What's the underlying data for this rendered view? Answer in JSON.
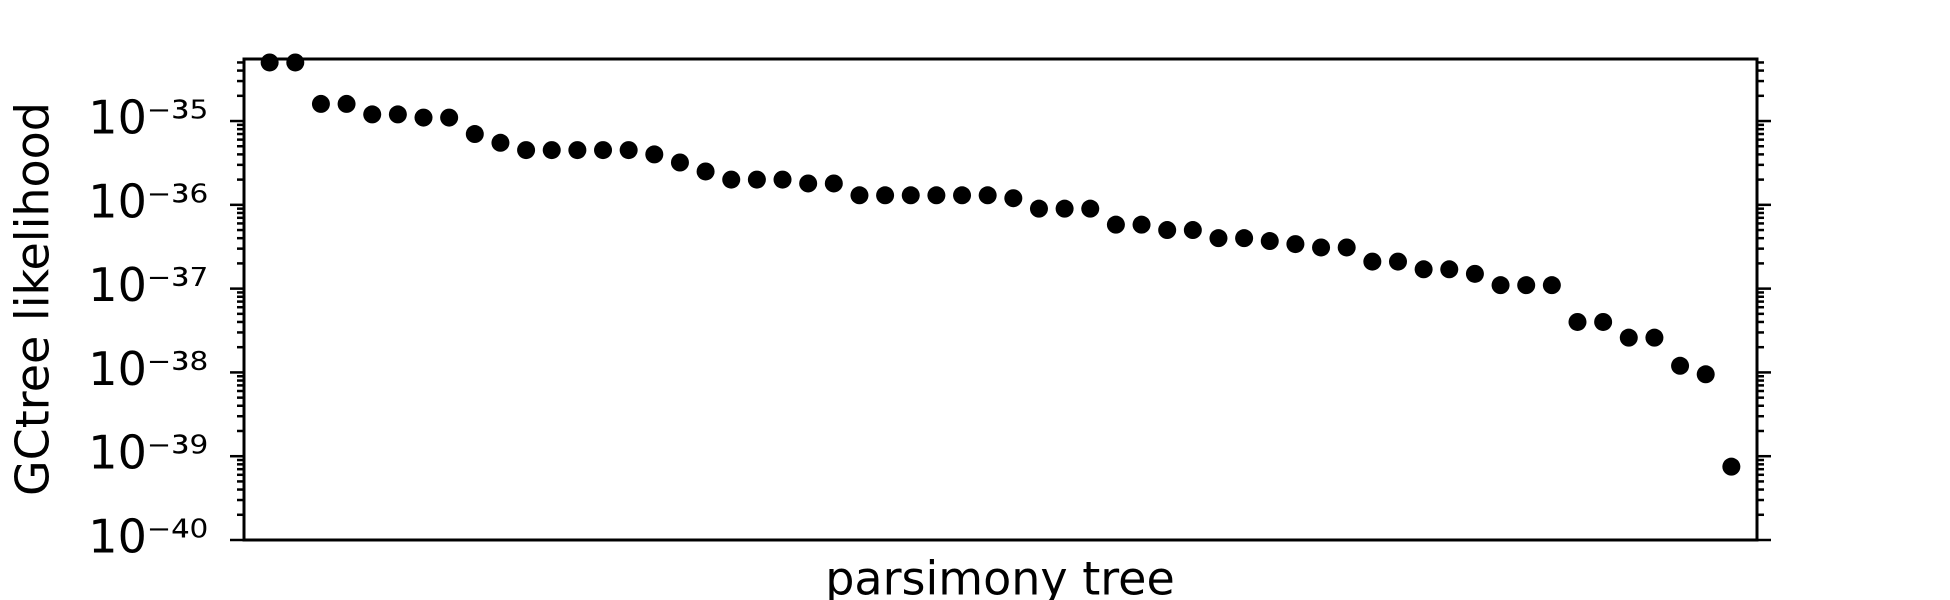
{
  "chart_data": {
    "type": "scatter",
    "x_label": "parsimony tree",
    "y_label": "GCtree likelihood",
    "x": [
      1,
      2,
      3,
      4,
      5,
      6,
      7,
      8,
      9,
      10,
      11,
      12,
      13,
      14,
      15,
      16,
      17,
      18,
      19,
      20,
      21,
      22,
      23,
      24,
      25,
      26,
      27,
      28,
      29,
      30,
      31,
      32,
      33,
      34,
      35,
      36,
      37,
      38,
      39,
      40,
      41,
      42,
      43,
      44,
      45,
      46,
      47,
      48,
      49,
      50,
      51,
      52,
      53,
      54,
      55,
      56,
      57,
      58
    ],
    "values": [
      5e-35,
      5e-35,
      1.6e-35,
      1.6e-35,
      1.2e-35,
      1.2e-35,
      1.1e-35,
      1.1e-35,
      7e-36,
      5.5e-36,
      4.5e-36,
      4.5e-36,
      4.5e-36,
      4.5e-36,
      4.5e-36,
      4e-36,
      3.2e-36,
      2.5e-36,
      2e-36,
      2e-36,
      2e-36,
      1.8e-36,
      1.8e-36,
      1.3e-36,
      1.3e-36,
      1.3e-36,
      1.3e-36,
      1.3e-36,
      1.3e-36,
      1.2e-36,
      9e-37,
      9e-37,
      9e-37,
      5.8e-37,
      5.8e-37,
      5e-37,
      5e-37,
      4e-37,
      4e-37,
      3.7e-37,
      3.4e-37,
      3.1e-37,
      3.1e-37,
      2.1e-37,
      2.1e-37,
      1.7e-37,
      1.7e-37,
      1.5e-37,
      1.1e-37,
      1.1e-37,
      1.1e-37,
      4e-38,
      4e-38,
      2.6e-38,
      2.6e-38,
      1.2e-38,
      9.5e-39,
      7.5e-40
    ],
    "color": "#000000",
    "xlim": [
      0,
      59
    ],
    "ylim": [
      1e-40,
      5.5e-35
    ],
    "y_log": true,
    "yticks": [
      {
        "value": 1e-40,
        "label": "10⁻⁴⁰"
      },
      {
        "value": 1e-39,
        "label": "10⁻³⁹"
      },
      {
        "value": 1e-38,
        "label": "10⁻³⁸"
      },
      {
        "value": 1e-37,
        "label": "10⁻³⁷"
      },
      {
        "value": 1e-36,
        "label": "10⁻³⁶"
      },
      {
        "value": 1e-35,
        "label": "10⁻³⁵"
      }
    ],
    "grid": false
  }
}
